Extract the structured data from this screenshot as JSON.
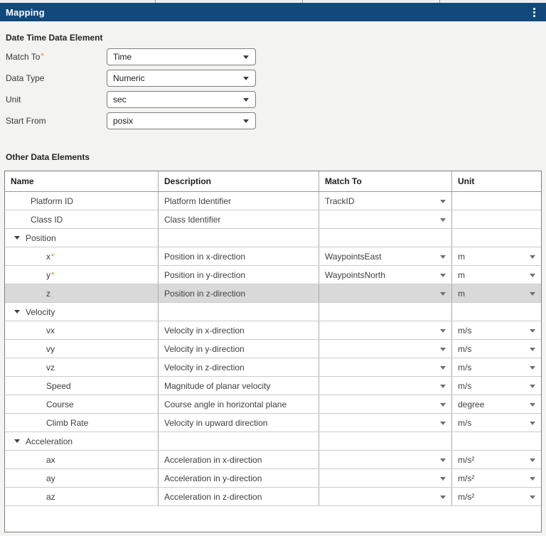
{
  "titlebar": {
    "title": "Mapping",
    "menu_icon": "kebab-menu-icon"
  },
  "colors": {
    "titlebar_bg": "#11497b",
    "titlebar_text": "#ffffff",
    "required_asterisk": "#e08214",
    "selected_row_bg": "#d9d9d9",
    "table_border": "#7d7d7d"
  },
  "required_mark": "*",
  "datetime_section": {
    "heading": "Date Time Data Element",
    "fields": [
      {
        "key": "match-to",
        "label": "Match To",
        "required": true,
        "value": "Time"
      },
      {
        "key": "data-type",
        "label": "Data Type",
        "required": false,
        "value": "Numeric"
      },
      {
        "key": "unit",
        "label": "Unit",
        "required": false,
        "value": "sec"
      },
      {
        "key": "start-from",
        "label": "Start From",
        "required": false,
        "value": "posix"
      }
    ]
  },
  "other_section": {
    "heading": "Other Data Elements",
    "table": {
      "columns": [
        "Name",
        "Description",
        "Match To",
        "Unit"
      ],
      "rows": [
        {
          "name": "Platform ID",
          "level": 1,
          "group": false,
          "required": false,
          "description": "Platform Identifier",
          "match_to": "TrackID",
          "match_dropdown": true,
          "unit": "",
          "unit_dropdown": false,
          "selected": false
        },
        {
          "name": "Class ID",
          "level": 1,
          "group": false,
          "required": false,
          "description": "Class Identifier",
          "match_to": "",
          "match_dropdown": true,
          "unit": "",
          "unit_dropdown": false,
          "selected": false
        },
        {
          "name": "Position",
          "level": 0,
          "group": true,
          "required": false,
          "description": "",
          "match_to": "",
          "match_dropdown": false,
          "unit": "",
          "unit_dropdown": false,
          "selected": false,
          "expanded": true
        },
        {
          "name": "x",
          "level": 2,
          "group": false,
          "required": true,
          "description": "Position in x-direction",
          "match_to": "WaypointsEast",
          "match_dropdown": true,
          "unit": "m",
          "unit_dropdown": true,
          "selected": false
        },
        {
          "name": "y",
          "level": 2,
          "group": false,
          "required": true,
          "description": "Position in y-direction",
          "match_to": "WaypointsNorth",
          "match_dropdown": true,
          "unit": "m",
          "unit_dropdown": true,
          "selected": false
        },
        {
          "name": "z",
          "level": 2,
          "group": false,
          "required": false,
          "description": "Position in z-direction",
          "match_to": "",
          "match_dropdown": true,
          "unit": "m",
          "unit_dropdown": true,
          "selected": true
        },
        {
          "name": "Velocity",
          "level": 0,
          "group": true,
          "required": false,
          "description": "",
          "match_to": "",
          "match_dropdown": false,
          "unit": "",
          "unit_dropdown": false,
          "selected": false,
          "expanded": true
        },
        {
          "name": "vx",
          "level": 2,
          "group": false,
          "required": false,
          "description": "Velocity in x-direction",
          "match_to": "",
          "match_dropdown": true,
          "unit": "m/s",
          "unit_dropdown": true,
          "selected": false
        },
        {
          "name": "vy",
          "level": 2,
          "group": false,
          "required": false,
          "description": "Velocity in y-direction",
          "match_to": "",
          "match_dropdown": true,
          "unit": "m/s",
          "unit_dropdown": true,
          "selected": false
        },
        {
          "name": "vz",
          "level": 2,
          "group": false,
          "required": false,
          "description": "Velocity in z-direction",
          "match_to": "",
          "match_dropdown": true,
          "unit": "m/s",
          "unit_dropdown": true,
          "selected": false
        },
        {
          "name": "Speed",
          "level": 2,
          "group": false,
          "required": false,
          "description": "Magnitude of planar velocity",
          "match_to": "",
          "match_dropdown": true,
          "unit": "m/s",
          "unit_dropdown": true,
          "selected": false
        },
        {
          "name": "Course",
          "level": 2,
          "group": false,
          "required": false,
          "description": "Course angle in horizontal plane",
          "match_to": "",
          "match_dropdown": true,
          "unit": "degree",
          "unit_dropdown": true,
          "selected": false
        },
        {
          "name": "Climb Rate",
          "level": 2,
          "group": false,
          "required": false,
          "description": "Velocity in upward direction",
          "match_to": "",
          "match_dropdown": true,
          "unit": "m/s",
          "unit_dropdown": true,
          "selected": false
        },
        {
          "name": "Acceleration",
          "level": 0,
          "group": true,
          "required": false,
          "description": "",
          "match_to": "",
          "match_dropdown": false,
          "unit": "",
          "unit_dropdown": false,
          "selected": false,
          "expanded": true
        },
        {
          "name": "ax",
          "level": 2,
          "group": false,
          "required": false,
          "description": "Acceleration in x-direction",
          "match_to": "",
          "match_dropdown": true,
          "unit": "m/s²",
          "unit_dropdown": true,
          "selected": false
        },
        {
          "name": "ay",
          "level": 2,
          "group": false,
          "required": false,
          "description": "Acceleration in y-direction",
          "match_to": "",
          "match_dropdown": true,
          "unit": "m/s²",
          "unit_dropdown": true,
          "selected": false
        },
        {
          "name": "az",
          "level": 2,
          "group": false,
          "required": false,
          "description": "Acceleration in z-direction",
          "match_to": "",
          "match_dropdown": true,
          "unit": "m/s²",
          "unit_dropdown": true,
          "selected": false
        }
      ]
    }
  }
}
